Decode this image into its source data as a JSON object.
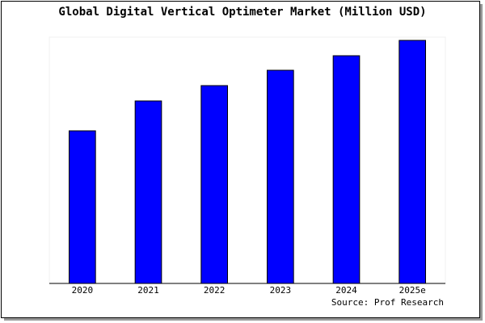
{
  "chart_data": {
    "type": "bar",
    "title": "Global Digital Vertical Optimeter Market (Million USD)",
    "categories": [
      "2020",
      "2021",
      "2022",
      "2023",
      "2024",
      "2025e"
    ],
    "values": [
      189,
      226,
      245,
      264,
      282,
      301
    ],
    "color": "#0000ff",
    "ylim": [
      0,
      303
    ],
    "source": "Source: Prof Research"
  }
}
